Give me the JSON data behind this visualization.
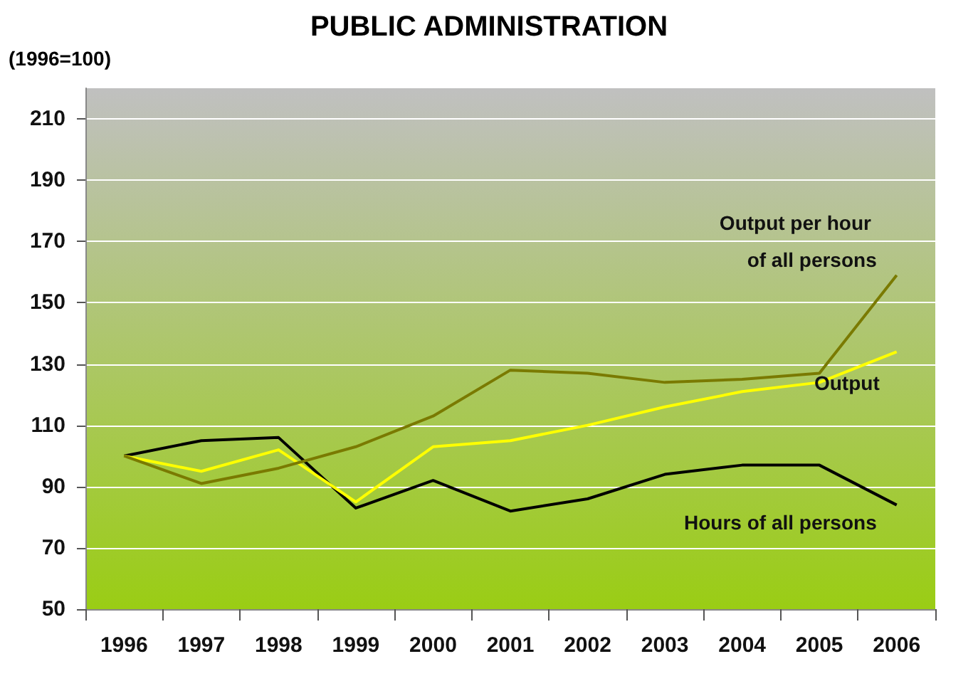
{
  "chart_data": {
    "type": "line",
    "title": "PUBLIC ADMINISTRATION",
    "ylabel": "(1996=100)",
    "categories": [
      "1996",
      "1997",
      "1998",
      "1999",
      "2000",
      "2001",
      "2002",
      "2003",
      "2004",
      "2005",
      "2006"
    ],
    "series": [
      {
        "name": "Output per hour of all persons",
        "color": "#7a7a00",
        "values": [
          100,
          91,
          96,
          103,
          113,
          128,
          127,
          124,
          125,
          127,
          159
        ]
      },
      {
        "name": "Output",
        "color": "#ffff00",
        "values": [
          100,
          95,
          102,
          85,
          103,
          105,
          110,
          116,
          121,
          124,
          134
        ]
      },
      {
        "name": "Hours of all persons",
        "color": "#000000",
        "values": [
          100,
          105,
          106,
          83,
          92,
          82,
          86,
          94,
          97,
          97,
          84
        ]
      }
    ],
    "ylim": [
      50,
      220
    ],
    "yticks": [
      50,
      70,
      90,
      110,
      130,
      150,
      170,
      190,
      210
    ],
    "grid": "y",
    "legend": false,
    "marker": "none",
    "line_style": "solid"
  }
}
